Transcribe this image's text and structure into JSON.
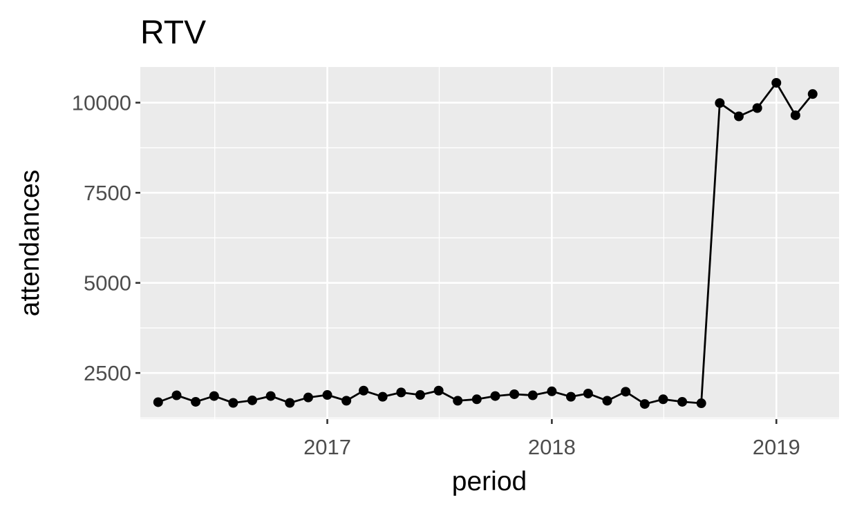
{
  "chart_data": {
    "type": "line",
    "title": "RTV",
    "xlabel": "period",
    "ylabel": "attendances",
    "x_ticks": [
      "2017",
      "2018",
      "2019"
    ],
    "y_ticks": [
      "2500",
      "5000",
      "7500",
      "10000"
    ],
    "xlim": [
      "2016-03-03",
      "2019-04-13"
    ],
    "ylim": [
      1220,
      10990
    ],
    "grid": true,
    "series": [
      {
        "markers": true,
        "color": "#000000",
        "x": [
          "2016-04-01",
          "2016-05-01",
          "2016-06-01",
          "2016-07-01",
          "2016-08-01",
          "2016-09-01",
          "2016-10-01",
          "2016-11-01",
          "2016-12-01",
          "2017-01-01",
          "2017-02-01",
          "2017-03-01",
          "2017-04-01",
          "2017-05-01",
          "2017-06-01",
          "2017-07-01",
          "2017-08-01",
          "2017-09-01",
          "2017-10-01",
          "2017-11-01",
          "2017-12-01",
          "2018-01-01",
          "2018-02-01",
          "2018-03-01",
          "2018-04-01",
          "2018-05-01",
          "2018-06-01",
          "2018-07-01",
          "2018-08-01",
          "2018-09-01",
          "2018-10-01",
          "2018-11-01",
          "2018-12-01",
          "2019-01-01",
          "2019-02-01",
          "2019-03-01"
        ],
        "values": [
          1690,
          1880,
          1700,
          1860,
          1670,
          1740,
          1860,
          1670,
          1820,
          1890,
          1730,
          2010,
          1840,
          1960,
          1890,
          2010,
          1730,
          1770,
          1860,
          1910,
          1880,
          1990,
          1840,
          1930,
          1730,
          1980,
          1640,
          1770,
          1700,
          1660,
          9990,
          9620,
          9850,
          10550,
          9650,
          10240
        ]
      }
    ],
    "colors": {
      "panel_background": "#ebebeb",
      "grid_line": "#ffffff",
      "line": "#000000",
      "point": "#000000",
      "tick_label": "#4d4d4d"
    }
  }
}
